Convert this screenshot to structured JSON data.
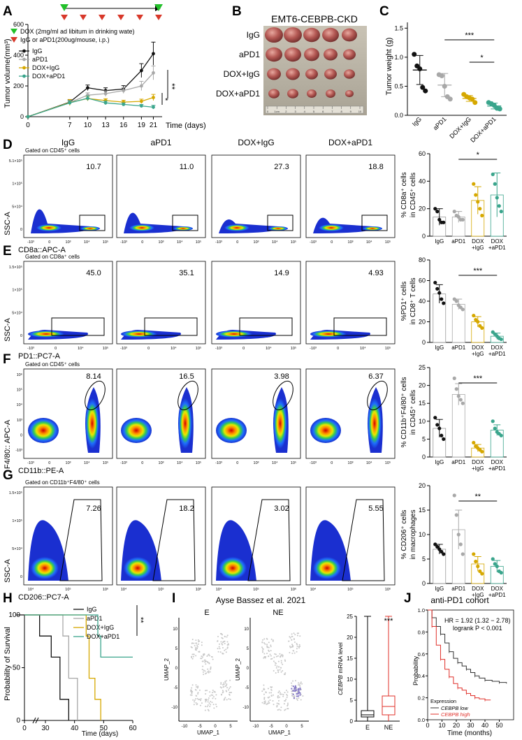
{
  "panels": {
    "A": {
      "letter": "A",
      "ylabel": "Tumor volume(mm³)",
      "xlabel": "Time (days)",
      "legend_dox": "DOX (2mg/ml ad libitum in drinking wate)",
      "legend_ipi": "IgG or aPD1(200ug/mouse, i.p.)",
      "sig1": "**",
      "sig2": "*"
    },
    "B": {
      "letter": "B",
      "title": "EMT6-CEBPB-CKD",
      "rows": [
        "IgG",
        "aPD1",
        "DOX+IgG",
        "DOX+aPD1"
      ],
      "ruler": [
        "0",
        "1cm",
        "2",
        "3",
        "4",
        "5",
        "6",
        "7",
        "8",
        "9",
        "10"
      ]
    },
    "C": {
      "letter": "C",
      "ylabel": "Tumor weight (g)",
      "sig1": "***",
      "sig2": "*"
    },
    "D": {
      "letter": "D",
      "gate": "Gated on CD45⁺ cells",
      "yaxis": "SSC-A",
      "xaxis": "CD8a::APC-A",
      "values": [
        "10.7",
        "11.0",
        "27.3",
        "18.8"
      ],
      "bar_ylabel1": "% CD8a⁺ cells",
      "bar_ylabel2": "in CD45⁺ cells",
      "sig": "*"
    },
    "E": {
      "letter": "E",
      "gate": "Gated on CD8a⁺ cells",
      "yaxis": "SSC-A",
      "xaxis": "PD1::PC7-A",
      "values": [
        "45.0",
        "35.1",
        "14.9",
        "4.93"
      ],
      "bar_ylabel1": "%PD1⁺ cells",
      "bar_ylabel2": "in CD8⁺ T cells",
      "sig": "***"
    },
    "F": {
      "letter": "F",
      "gate": "Gated on CD45⁺ cells",
      "yaxis": "F4/80:: APC-A",
      "xaxis": "CD11b::PE-A",
      "values": [
        "8.14",
        "16.5",
        "3.98",
        "6.37"
      ],
      "bar_ylabel1": "% CD11b⁺F4/80⁺ cells",
      "bar_ylabel2": "in CD45⁺ cells",
      "sig": "***"
    },
    "G": {
      "letter": "G",
      "gate": "Gated on CD11b⁺F4/80⁺ cells",
      "yaxis": "SSC-A",
      "xaxis": "CD206::PC7-A",
      "values": [
        "7.26",
        "18.2",
        "3.02",
        "5.55"
      ],
      "bar_ylabel1": "% CD206⁺ cells",
      "bar_ylabel2": "in macrophages",
      "sig": "**"
    },
    "H": {
      "letter": "H",
      "ylabel": "Probability of Survival",
      "xlabel": "Time (days)",
      "sig": "**",
      "legend": [
        "IgG",
        "aPD1",
        "DOX+IgG",
        "DOX+aPD1"
      ]
    },
    "I": {
      "letter": "I",
      "title": "Ayse Bassez et al. 2021",
      "umap_e": "E",
      "umap_ne": "NE",
      "umap_x": "UMAP_1",
      "umap_y": "UMAP_2",
      "box_ylabel_gene": "CEBPB",
      "box_ylabel_rest": " mRNA level",
      "box_cats": [
        "E",
        "NE"
      ],
      "sig": "***"
    },
    "J": {
      "letter": "J",
      "title": "anti-PD1 cohort",
      "hr": "HR = 1.92 (1.32 − 2.78)",
      "logrank": "logrank P < 0.001",
      "ylabel": "Probability",
      "xlabel": "Time (months)",
      "legend_title": "Expression",
      "legend_low": "CEBPB low",
      "legend_high": "CEBPB high"
    }
  },
  "flow_columns": [
    "IgG",
    "aPD1",
    "DOX+IgG",
    "DOX+aPD1"
  ],
  "bar_groups": [
    "IgG",
    "aPD1",
    "DOX\n+IgG",
    "DOX\n+aPD1"
  ],
  "colors": {
    "IgG": "#111111",
    "aPD1": "#a8a8a8",
    "DOXIgG": "#d6a800",
    "DOXaPD1": "#3aa58c",
    "green": "#22c02a",
    "red": "#d8382a",
    "km_low": "#333333",
    "km_high": "#e0302a"
  },
  "chart_data": [
    {
      "id": "A",
      "type": "line",
      "title": "",
      "x": [
        0,
        7,
        10,
        13,
        16,
        19,
        21
      ],
      "xticks": [
        0,
        7,
        10,
        13,
        16,
        19,
        21
      ],
      "xlim": [
        0,
        22
      ],
      "yticks": [
        0,
        200,
        400,
        600
      ],
      "ylim": [
        0,
        600
      ],
      "xlabel": "Time (days)",
      "ylabel": "Tumor volume(mm³)",
      "series": [
        {
          "name": "IgG",
          "values": [
            0,
            95,
            188,
            170,
            180,
            300,
            410
          ],
          "err": [
            0,
            15,
            18,
            18,
            22,
            45,
            75
          ]
        },
        {
          "name": "aPD1",
          "values": [
            0,
            92,
            140,
            150,
            170,
            200,
            285
          ],
          "err": [
            0,
            12,
            15,
            18,
            18,
            30,
            45
          ]
        },
        {
          "name": "DOX+IgG",
          "values": [
            0,
            92,
            118,
            105,
            95,
            100,
            125
          ],
          "err": [
            0,
            20,
            15,
            12,
            12,
            14,
            20
          ]
        },
        {
          "name": "DOX+aPD1",
          "values": [
            0,
            90,
            120,
            90,
            80,
            70,
            62
          ],
          "err": [
            0,
            12,
            15,
            12,
            10,
            10,
            12
          ]
        }
      ]
    },
    {
      "id": "C",
      "type": "scatter",
      "ylabel": "Tumor weight (g)",
      "categories": [
        "IgG",
        "aPD1",
        "DOX+IgG",
        "DOX+aPD1"
      ],
      "yticks": [
        0.0,
        0.5,
        1.0,
        1.5
      ],
      "ylim": [
        0,
        1.6
      ],
      "series": [
        {
          "name": "IgG",
          "points": [
            1.05,
            0.85,
            0.8,
            0.48,
            0.42
          ],
          "mean": 0.78,
          "sd": 0.25
        },
        {
          "name": "aPD1",
          "points": [
            0.7,
            0.68,
            0.5,
            0.32,
            0.28
          ],
          "mean": 0.52,
          "sd": 0.2
        },
        {
          "name": "DOX+IgG",
          "points": [
            0.36,
            0.32,
            0.3,
            0.28,
            0.22
          ],
          "mean": 0.29,
          "sd": 0.05
        },
        {
          "name": "DOX+aPD1",
          "points": [
            0.22,
            0.2,
            0.17,
            0.12,
            0.11
          ],
          "mean": 0.16,
          "sd": 0.05
        }
      ]
    },
    {
      "id": "D",
      "type": "bar",
      "categories": [
        "IgG",
        "aPD1",
        "DOX+IgG",
        "DOX+aPD1"
      ],
      "yticks": [
        0,
        20,
        40,
        60
      ],
      "ylim": [
        0,
        60
      ],
      "values": [
        14,
        14,
        26,
        30
      ],
      "sd": [
        6,
        4,
        10,
        16
      ],
      "points": [
        [
          20,
          18,
          12,
          10,
          10
        ],
        [
          18,
          15,
          14,
          12,
          12
        ],
        [
          38,
          30,
          25,
          20,
          15
        ],
        [
          45,
          38,
          28,
          22,
          18
        ]
      ]
    },
    {
      "id": "E",
      "type": "bar",
      "categories": [
        "IgG",
        "aPD1",
        "DOX+IgG",
        "DOX+aPD1"
      ],
      "yticks": [
        0,
        20,
        40,
        60,
        80
      ],
      "ylim": [
        0,
        80
      ],
      "values": [
        47,
        37,
        20,
        6
      ],
      "sd": [
        9,
        5,
        5,
        3
      ],
      "points": [
        [
          58,
          52,
          48,
          42,
          38
        ],
        [
          42,
          40,
          36,
          34,
          32
        ],
        [
          26,
          22,
          20,
          16,
          14
        ],
        [
          10,
          8,
          6,
          4,
          3
        ]
      ]
    },
    {
      "id": "F",
      "type": "bar",
      "categories": [
        "IgG",
        "aPD1",
        "DOX+IgG",
        "DOX+aPD1"
      ],
      "yticks": [
        0,
        5,
        10,
        15,
        20,
        25
      ],
      "ylim": [
        0,
        25
      ],
      "values": [
        8,
        17.5,
        2.5,
        7.5
      ],
      "sd": [
        2.5,
        3,
        1,
        1.5
      ],
      "points": [
        [
          11,
          9,
          8,
          6,
          5
        ],
        [
          22,
          19,
          17,
          16,
          15
        ],
        [
          4,
          3,
          2.5,
          2,
          1.5
        ],
        [
          10,
          8,
          7,
          6.5,
          6
        ]
      ]
    },
    {
      "id": "G",
      "type": "bar",
      "categories": [
        "IgG",
        "aPD1",
        "DOX+IgG",
        "DOX+aPD1"
      ],
      "yticks": [
        0,
        5,
        10,
        15,
        20
      ],
      "ylim": [
        0,
        20
      ],
      "values": [
        7,
        11,
        4,
        3.5
      ],
      "sd": [
        1,
        4,
        1.5,
        1.2
      ],
      "points": [
        [
          8,
          7.5,
          7,
          6.5,
          6
        ],
        [
          18,
          14,
          10,
          8,
          6
        ],
        [
          6,
          4.5,
          3.5,
          2.5,
          2
        ],
        [
          5,
          4,
          3.5,
          2.5,
          2.2
        ]
      ]
    },
    {
      "id": "H",
      "type": "line",
      "xlabel": "Time (days)",
      "ylabel": "Probability of Survival",
      "xticks": [
        0,
        30,
        40,
        50,
        60
      ],
      "yticks": [
        0,
        50,
        100
      ],
      "ylim": [
        0,
        100
      ],
      "series": [
        {
          "name": "IgG",
          "steps": [
            [
              20,
              100
            ],
            [
              28,
              80
            ],
            [
              32,
              60
            ],
            [
              35,
              20
            ],
            [
              38,
              0
            ]
          ]
        },
        {
          "name": "aPD1",
          "steps": [
            [
              30,
              100
            ],
            [
              36,
              80
            ],
            [
              38,
              40
            ],
            [
              41,
              0
            ]
          ]
        },
        {
          "name": "DOX+IgG",
          "steps": [
            [
              40,
              100
            ],
            [
              44,
              80
            ],
            [
              45,
              40
            ],
            [
              47,
              20
            ],
            [
              49,
              0
            ]
          ]
        },
        {
          "name": "DOX+aPD1",
          "steps": [
            [
              44,
              100
            ],
            [
              48,
              80
            ],
            [
              49,
              60
            ],
            [
              60,
              60
            ]
          ]
        }
      ]
    },
    {
      "id": "I",
      "type": "box",
      "ylabel": "CEBPB mRNA level",
      "categories": [
        "E",
        "NE"
      ],
      "yticks": [
        0,
        5,
        10,
        15,
        20,
        25
      ],
      "ylim": [
        0,
        25
      ],
      "boxes": [
        {
          "min": 0,
          "q1": 1,
          "median": 1.5,
          "q3": 2.5,
          "max": 25
        },
        {
          "min": 0,
          "q1": 1.5,
          "median": 3.5,
          "q3": 6,
          "max": 25
        }
      ]
    },
    {
      "id": "J",
      "type": "line",
      "xlabel": "Time (months)",
      "ylabel": "Probability",
      "xticks": [
        0,
        10,
        20,
        30,
        40,
        50
      ],
      "yticks": [
        0.0,
        0.2,
        0.4,
        0.6,
        0.8,
        1.0
      ],
      "series": [
        {
          "name": "CEBPB low",
          "x": [
            0,
            3,
            6,
            9,
            12,
            15,
            18,
            21,
            24,
            27,
            30,
            33,
            36,
            40,
            45,
            50,
            55
          ],
          "y": [
            1.0,
            0.93,
            0.85,
            0.78,
            0.7,
            0.62,
            0.56,
            0.52,
            0.49,
            0.46,
            0.43,
            0.4,
            0.38,
            0.36,
            0.35,
            0.34,
            0.33
          ]
        },
        {
          "name": "CEBPB high",
          "x": [
            0,
            3,
            6,
            9,
            12,
            15,
            18,
            21,
            24,
            27,
            30,
            33,
            36,
            40,
            44
          ],
          "y": [
            1.0,
            0.85,
            0.68,
            0.55,
            0.46,
            0.39,
            0.33,
            0.29,
            0.27,
            0.24,
            0.22,
            0.2,
            0.19,
            0.18,
            0.18
          ]
        }
      ]
    }
  ]
}
